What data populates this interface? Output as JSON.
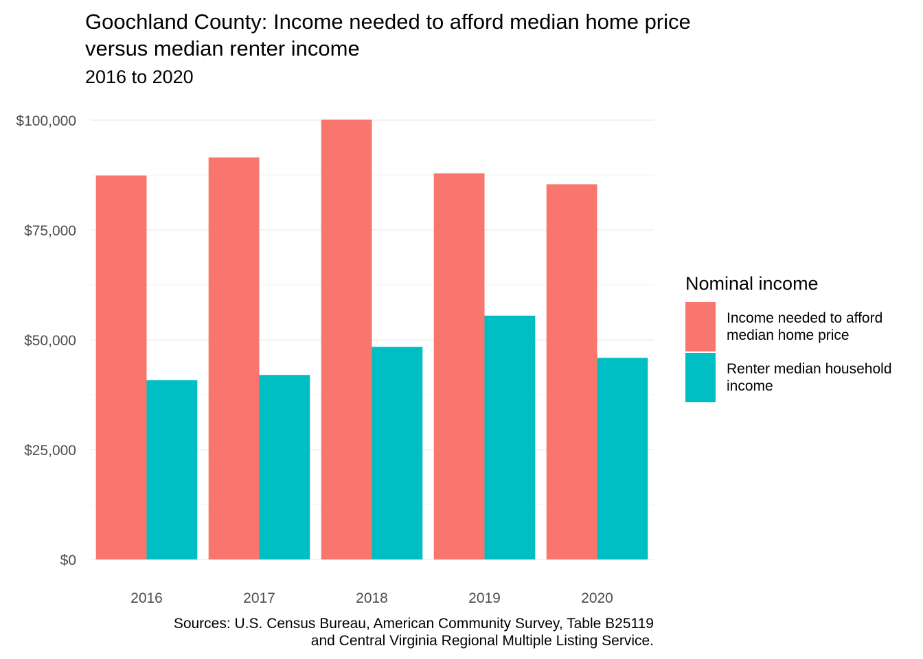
{
  "chart_data": {
    "type": "bar",
    "title": "Goochland County: Income needed to afford median home price\nversus median renter income",
    "subtitle": "2016 to 2020",
    "categories": [
      "2016",
      "2017",
      "2018",
      "2019",
      "2020"
    ],
    "series": [
      {
        "name": "Income needed to afford median home price",
        "color": "#F8766D",
        "values": [
          87400,
          91500,
          100100,
          87900,
          85400
        ]
      },
      {
        "name": "Renter median household income",
        "color": "#00BFC4",
        "values": [
          40800,
          42000,
          48400,
          55500,
          45900
        ]
      }
    ],
    "ylim": [
      0,
      100000
    ],
    "yticks": [
      0,
      25000,
      50000,
      75000,
      100000
    ],
    "ytick_labels": [
      "$0",
      "$25,000",
      "$50,000",
      "$75,000",
      "$100,000"
    ],
    "legend_title": "Nominal income",
    "legend_labels": [
      "Income needed to afford\nmedian home price",
      "Renter median household\nincome"
    ],
    "legend_position": "right",
    "grid": true,
    "caption": "Sources: U.S. Census Bureau, American Community Survey, Table B25119\nand Central Virginia Regional Multiple Listing Service."
  }
}
